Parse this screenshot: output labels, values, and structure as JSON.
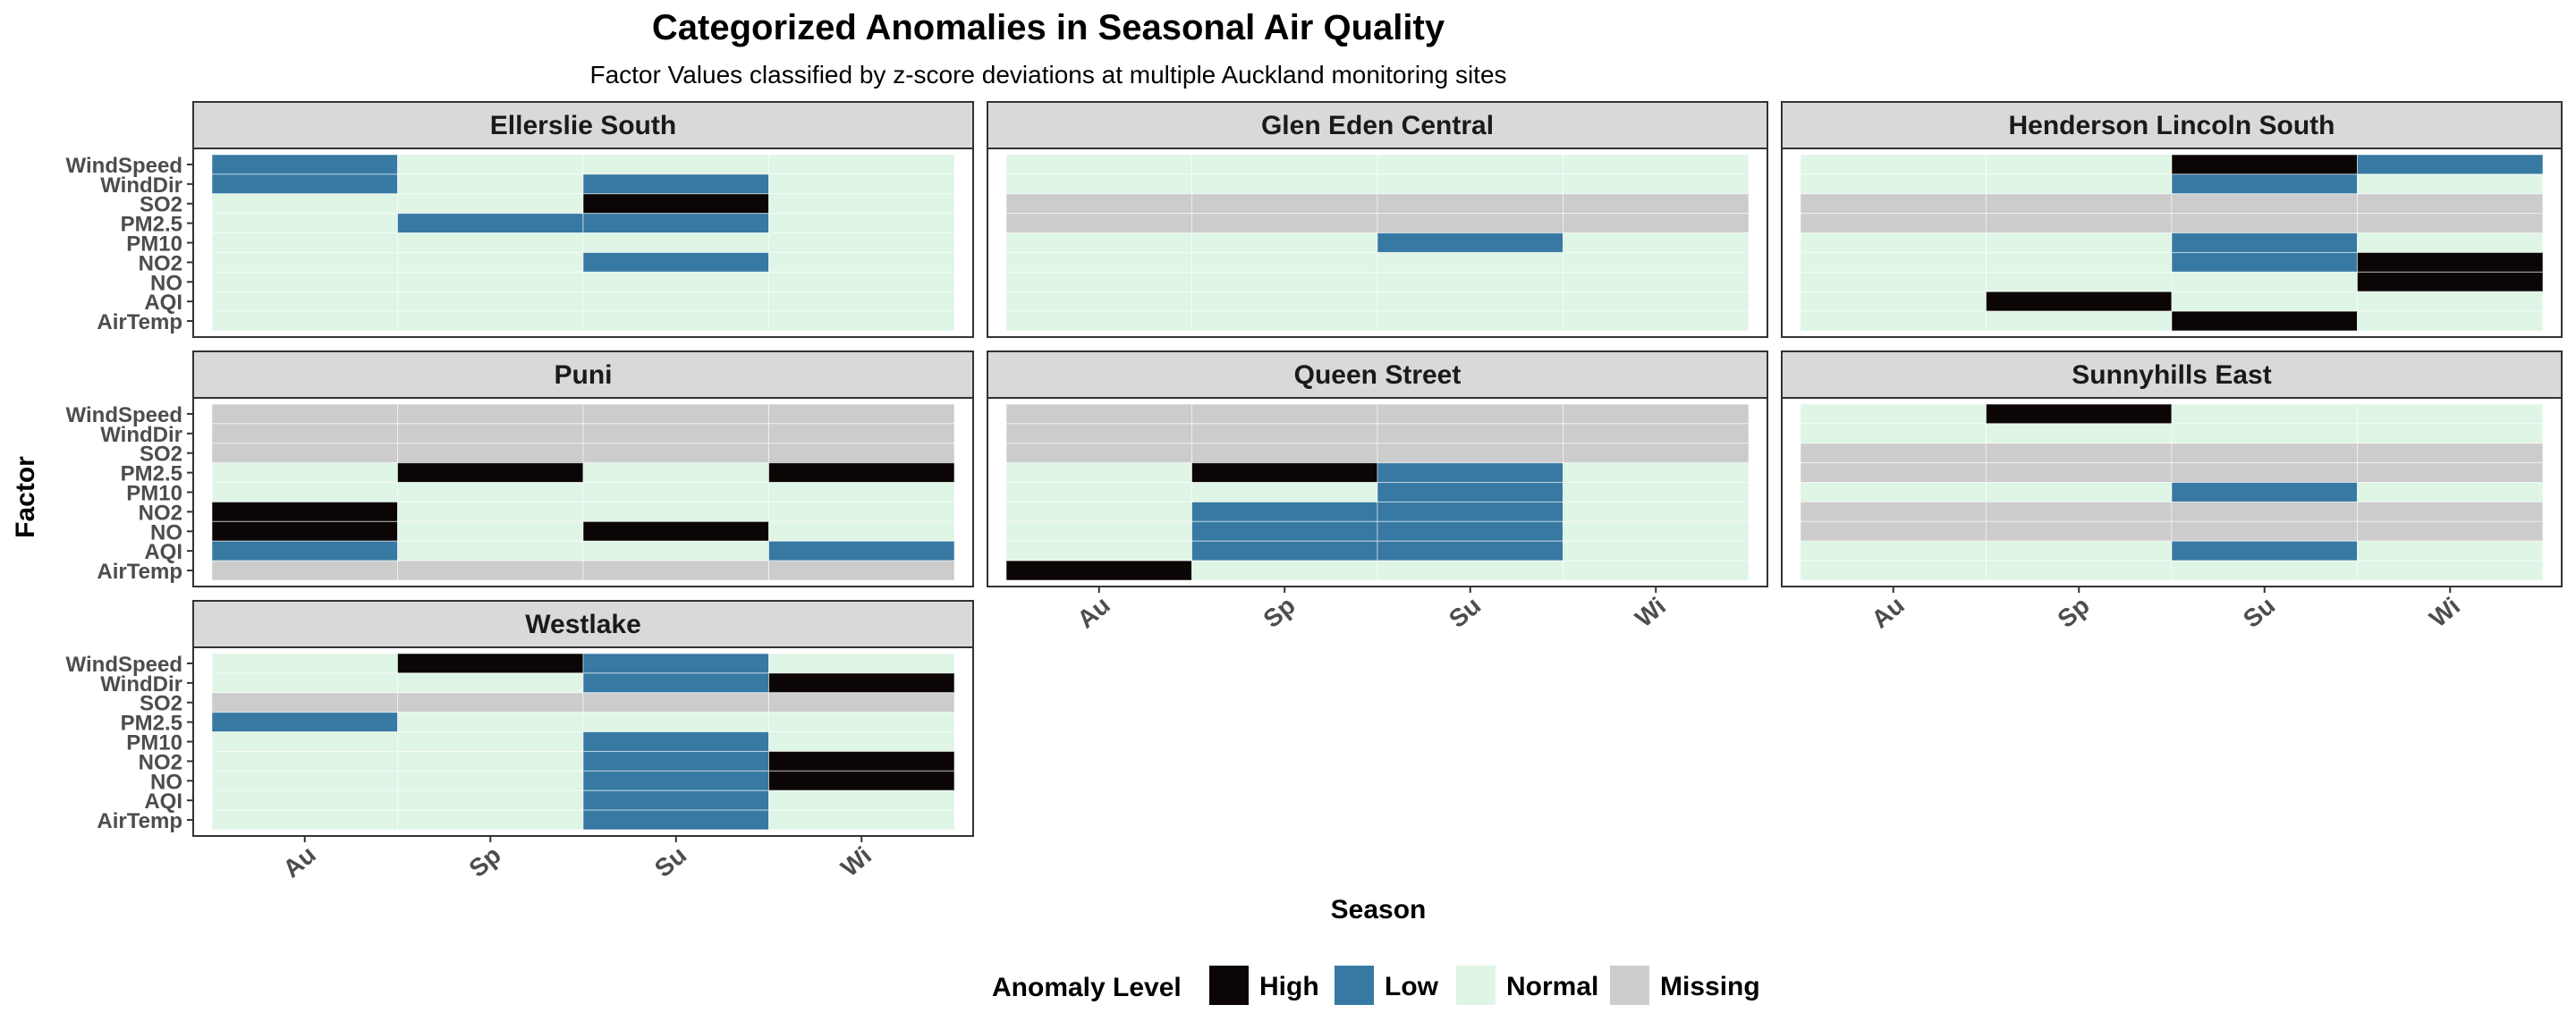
{
  "chart_data": {
    "type": "heatmap",
    "title": "Categorized Anomalies in Seasonal Air Quality",
    "subtitle": "Factor Values classified by z-score deviations at multiple Auckland monitoring sites",
    "xlabel": "Season",
    "ylabel": "Factor",
    "x_categories": [
      "Au",
      "Sp",
      "Su",
      "Wi"
    ],
    "y_categories": [
      "WindSpeed",
      "WindDir",
      "SO2",
      "PM2.5",
      "PM10",
      "NO2",
      "NO",
      "AQI",
      "AirTemp"
    ],
    "legend": {
      "title": "Anomaly Level",
      "position": "bottom",
      "items": [
        {
          "key": "H",
          "label": "High"
        },
        {
          "key": "L",
          "label": "Low"
        },
        {
          "key": "N",
          "label": "Normal"
        },
        {
          "key": "M",
          "label": "Missing"
        }
      ]
    },
    "colors": {
      "H": "#0b0505",
      "L": "#3779a3",
      "N": "#dff5e6",
      "M": "#cccccc",
      "strip_fill": "#d9d9d9",
      "panel_border": "#333333",
      "axis_text": "#4d4d4d"
    },
    "note_cells": "rows follow y_categories order; columns follow x_categories order; H=High, L=Low, N=Normal, M=Missing",
    "panels": [
      {
        "name": "Ellerslie South",
        "cells": [
          [
            "L",
            "N",
            "N",
            "N"
          ],
          [
            "L",
            "N",
            "L",
            "N"
          ],
          [
            "N",
            "N",
            "H",
            "N"
          ],
          [
            "N",
            "L",
            "L",
            "N"
          ],
          [
            "N",
            "N",
            "N",
            "N"
          ],
          [
            "N",
            "N",
            "L",
            "N"
          ],
          [
            "N",
            "N",
            "N",
            "N"
          ],
          [
            "N",
            "N",
            "N",
            "N"
          ],
          [
            "N",
            "N",
            "N",
            "N"
          ]
        ]
      },
      {
        "name": "Glen Eden Central",
        "cells": [
          [
            "N",
            "N",
            "N",
            "N"
          ],
          [
            "N",
            "N",
            "N",
            "N"
          ],
          [
            "M",
            "M",
            "M",
            "M"
          ],
          [
            "M",
            "M",
            "M",
            "M"
          ],
          [
            "N",
            "N",
            "L",
            "N"
          ],
          [
            "N",
            "N",
            "N",
            "N"
          ],
          [
            "N",
            "N",
            "N",
            "N"
          ],
          [
            "N",
            "N",
            "N",
            "N"
          ],
          [
            "N",
            "N",
            "N",
            "N"
          ]
        ]
      },
      {
        "name": "Henderson Lincoln South",
        "cells": [
          [
            "N",
            "N",
            "H",
            "L"
          ],
          [
            "N",
            "N",
            "L",
            "N"
          ],
          [
            "M",
            "M",
            "M",
            "M"
          ],
          [
            "M",
            "M",
            "M",
            "M"
          ],
          [
            "N",
            "N",
            "L",
            "N"
          ],
          [
            "N",
            "N",
            "L",
            "H"
          ],
          [
            "N",
            "N",
            "N",
            "H"
          ],
          [
            "N",
            "H",
            "N",
            "N"
          ],
          [
            "N",
            "N",
            "H",
            "N"
          ]
        ]
      },
      {
        "name": "Puni",
        "cells": [
          [
            "M",
            "M",
            "M",
            "M"
          ],
          [
            "M",
            "M",
            "M",
            "M"
          ],
          [
            "M",
            "M",
            "M",
            "M"
          ],
          [
            "N",
            "H",
            "N",
            "H"
          ],
          [
            "N",
            "N",
            "N",
            "N"
          ],
          [
            "H",
            "N",
            "N",
            "N"
          ],
          [
            "H",
            "N",
            "H",
            "N"
          ],
          [
            "L",
            "N",
            "N",
            "L"
          ],
          [
            "M",
            "M",
            "M",
            "M"
          ]
        ]
      },
      {
        "name": "Queen Street",
        "cells": [
          [
            "M",
            "M",
            "M",
            "M"
          ],
          [
            "M",
            "M",
            "M",
            "M"
          ],
          [
            "M",
            "M",
            "M",
            "M"
          ],
          [
            "N",
            "H",
            "L",
            "N"
          ],
          [
            "N",
            "N",
            "L",
            "N"
          ],
          [
            "N",
            "L",
            "L",
            "N"
          ],
          [
            "N",
            "L",
            "L",
            "N"
          ],
          [
            "N",
            "L",
            "L",
            "N"
          ],
          [
            "H",
            "N",
            "N",
            "N"
          ]
        ]
      },
      {
        "name": "Sunnyhills East",
        "cells": [
          [
            "N",
            "H",
            "N",
            "N"
          ],
          [
            "N",
            "N",
            "N",
            "N"
          ],
          [
            "M",
            "M",
            "M",
            "M"
          ],
          [
            "M",
            "M",
            "M",
            "M"
          ],
          [
            "N",
            "N",
            "L",
            "N"
          ],
          [
            "M",
            "M",
            "M",
            "M"
          ],
          [
            "M",
            "M",
            "M",
            "M"
          ],
          [
            "N",
            "N",
            "L",
            "N"
          ],
          [
            "N",
            "N",
            "N",
            "N"
          ]
        ]
      },
      {
        "name": "Westlake",
        "cells": [
          [
            "N",
            "H",
            "L",
            "N"
          ],
          [
            "N",
            "N",
            "L",
            "H"
          ],
          [
            "M",
            "M",
            "M",
            "M"
          ],
          [
            "L",
            "N",
            "N",
            "N"
          ],
          [
            "N",
            "N",
            "L",
            "N"
          ],
          [
            "N",
            "N",
            "L",
            "H"
          ],
          [
            "N",
            "N",
            "L",
            "H"
          ],
          [
            "N",
            "N",
            "L",
            "N"
          ],
          [
            "N",
            "N",
            "L",
            "N"
          ]
        ]
      }
    ]
  }
}
